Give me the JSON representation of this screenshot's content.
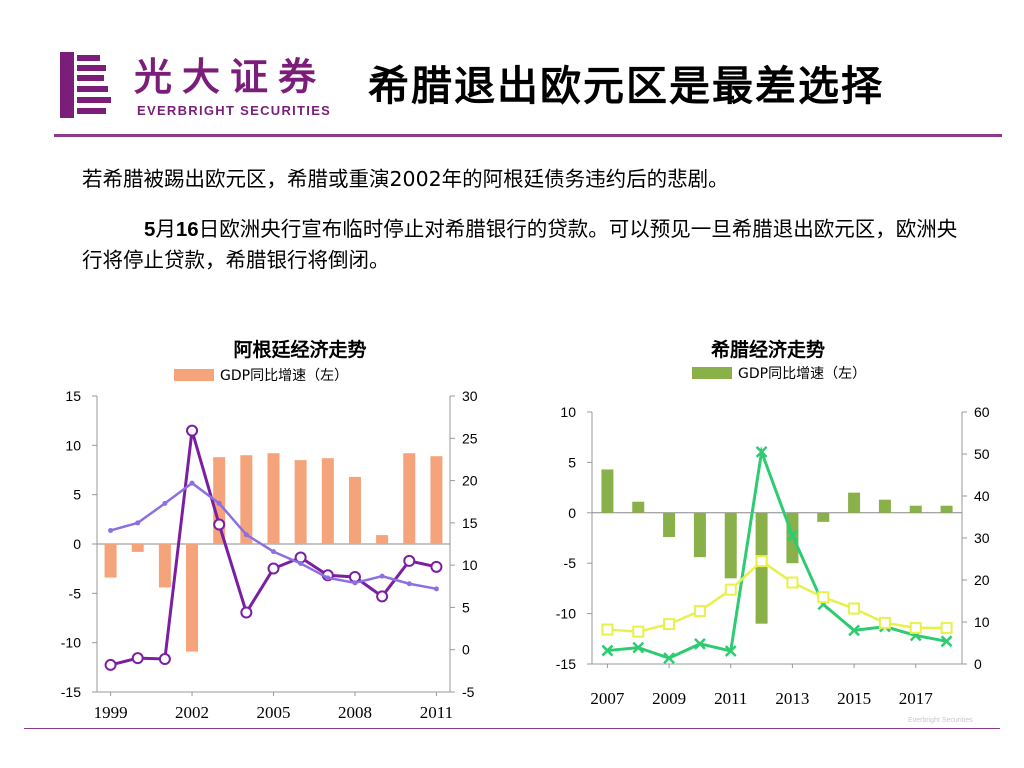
{
  "header": {
    "brand_cn": "光大证券",
    "brand_en": "EVERBRIGHT SECURITIES",
    "slide_title": "希腊退出欧元区是最差选择",
    "logo_letter": "B",
    "accent_color": "#8c3b8c"
  },
  "body": {
    "para1": "若希腊被踢出欧元区，希腊或重演2002年的阿根廷债务违约后的悲剧。",
    "para2_m": "5",
    "para2_month": "月",
    "para2_d": "16",
    "para2_rest": "日欧洲央行宣布临时停止对希腊银行的贷款。可以预见一旦希腊退出欧元区，欧洲央行将停止贷款，希腊银行将倒闭。"
  },
  "footer": {
    "watermark": "Everbright Securities"
  },
  "chart_data": [
    {
      "type": "bar",
      "title": "阿根廷经济走势",
      "legend": [
        {
          "label": "GDP同比增速（左）",
          "color": "#f4a37a"
        }
      ],
      "x_ticks": [
        "1999",
        "2002",
        "2005",
        "2008",
        "2011"
      ],
      "x_range": [
        1999,
        2011
      ],
      "y_left": {
        "range": [
          -15,
          15
        ],
        "ticks": [
          15,
          10,
          5,
          0,
          -5,
          -10,
          -15
        ]
      },
      "y_right": {
        "range": [
          -5,
          30
        ],
        "ticks": [
          30,
          25,
          20,
          15,
          10,
          5,
          0,
          -5
        ]
      },
      "series": [
        {
          "type": "bar",
          "axis": "left",
          "color": "#f4a37a",
          "x": [
            1999,
            2000,
            2001,
            2002,
            2003,
            2004,
            2005,
            2006,
            2007,
            2008,
            2009,
            2010,
            2011
          ],
          "values": [
            -3.4,
            -0.8,
            -4.4,
            -10.9,
            8.8,
            9.0,
            9.2,
            8.5,
            8.7,
            6.8,
            0.9,
            9.2,
            8.9
          ]
        },
        {
          "type": "line",
          "axis": "right",
          "color": "#7b1fa2",
          "marker": "circle",
          "x": [
            1999,
            2000,
            2001,
            2002,
            2003,
            2004,
            2005,
            2006,
            2007,
            2008,
            2009,
            2010,
            2011
          ],
          "values": [
            -1.8,
            -1.0,
            -1.1,
            25.9,
            14.8,
            4.4,
            9.6,
            10.9,
            8.8,
            8.6,
            6.3,
            10.5,
            9.8
          ]
        },
        {
          "type": "line",
          "axis": "right",
          "color": "#8c6fe0",
          "marker": "small",
          "x": [
            1999,
            2000,
            2001,
            2002,
            2003,
            2004,
            2005,
            2006,
            2007,
            2008,
            2009,
            2010,
            2011
          ],
          "values": [
            14.1,
            15.0,
            17.3,
            19.7,
            17.3,
            13.6,
            11.6,
            10.2,
            8.5,
            7.9,
            8.7,
            7.8,
            7.2
          ]
        }
      ]
    },
    {
      "type": "bar",
      "title": "希腊经济走势",
      "legend": [
        {
          "label": "GDP同比增速（左）",
          "color": "#8ab04a"
        }
      ],
      "x_ticks": [
        "2007",
        "2009",
        "2011",
        "2013",
        "2015",
        "2017"
      ],
      "x_range": [
        2007,
        2018
      ],
      "y_left": {
        "range": [
          -15,
          10
        ],
        "ticks": [
          10,
          5,
          0,
          -5,
          -10,
          -15
        ]
      },
      "y_right": {
        "range": [
          0,
          60
        ],
        "ticks": [
          60,
          50,
          40,
          30,
          20,
          10,
          0
        ]
      },
      "series": [
        {
          "type": "bar",
          "axis": "left",
          "color": "#8ab04a",
          "x": [
            2007,
            2008,
            2009,
            2010,
            2011,
            2012,
            2013,
            2014,
            2015,
            2016,
            2017,
            2018
          ],
          "values": [
            4.3,
            1.1,
            -2.4,
            -4.4,
            -6.5,
            -11.0,
            -5.0,
            -0.9,
            2.0,
            1.3,
            0.7,
            0.7
          ]
        },
        {
          "type": "line",
          "axis": "right",
          "color": "#2ecc71",
          "marker": "x",
          "x": [
            2007,
            2008,
            2009,
            2010,
            2011,
            2012,
            2013,
            2014,
            2015,
            2016,
            2017,
            2018
          ],
          "values": [
            3.2,
            3.9,
            1.4,
            4.8,
            3.1,
            50.5,
            30.6,
            14.2,
            8.0,
            8.9,
            6.8,
            5.4
          ]
        },
        {
          "type": "line",
          "axis": "right",
          "color": "#e8f04a",
          "marker": "square",
          "x": [
            2007,
            2008,
            2009,
            2010,
            2011,
            2012,
            2013,
            2014,
            2015,
            2016,
            2017,
            2018
          ],
          "values": [
            8.2,
            7.7,
            9.5,
            12.6,
            17.7,
            24.5,
            19.4,
            15.9,
            13.2,
            9.8,
            8.6,
            8.6
          ]
        }
      ]
    }
  ]
}
